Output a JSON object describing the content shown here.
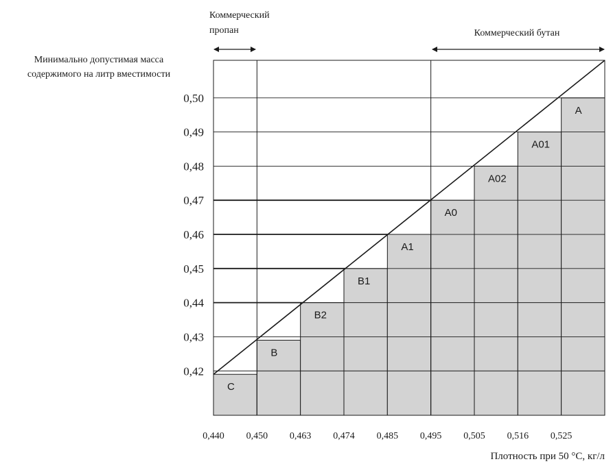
{
  "chart_data": {
    "type": "bar",
    "ylabel": [
      "Минимально допустимая масса",
      "содержимого на литр вместимости"
    ],
    "xlabel": "Плотность при 50 °С, кг/л",
    "x_ticks": [
      "0,440",
      "0,450",
      "0,463",
      "0,474",
      "0,485",
      "0,495",
      "0,505",
      "0,516",
      "0,525"
    ],
    "y_ticks": [
      "0,42",
      "0,43",
      "0,44",
      "0,45",
      "0,46",
      "0,47",
      "0,48",
      "0,49",
      "0,50"
    ],
    "ylim": [
      0.407,
      0.511
    ],
    "categories": [
      "C",
      "B",
      "B2",
      "B1",
      "A1",
      "A0",
      "A02",
      "A01",
      "A"
    ],
    "values": [
      0.419,
      0.429,
      0.44,
      0.45,
      0.46,
      0.47,
      0.48,
      0.49,
      0.5
    ],
    "bar_color": "#d3d3d3",
    "annotations": {
      "propane": [
        "Коммерческий",
        "пропан"
      ],
      "butane": "Коммерческий бутан"
    },
    "grid": true
  }
}
